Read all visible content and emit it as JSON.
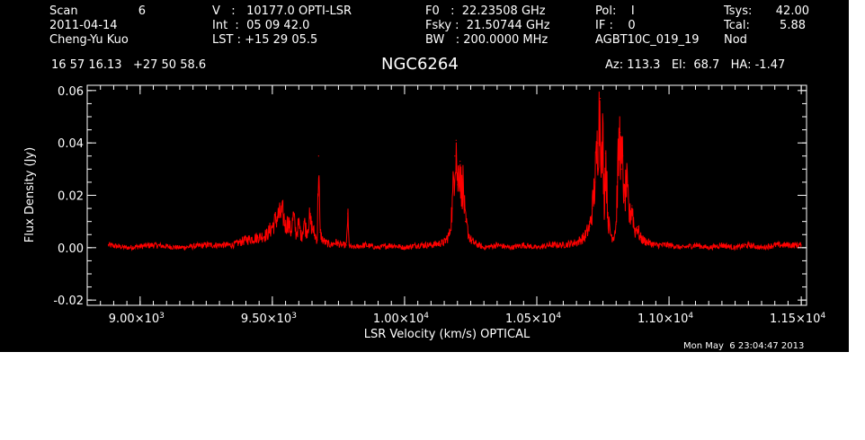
{
  "header": {
    "col1": {
      "scan_label": "Scan",
      "scan_value": "6",
      "date": "2011-04-14",
      "observer": "Cheng-Yu Kuo"
    },
    "col2": {
      "velocity_line": "V   :   10177.0 OPTI-LSR",
      "int_line": "Int  :  05 09 42.0",
      "lst_line": "LST : +15 29 05.5"
    },
    "col3": {
      "f0_line": "F0   :  22.23508 GHz",
      "fsky_line": "Fsky :  21.50744 GHz",
      "bw_line": "BW   : 200.0000 MHz"
    },
    "col4": {
      "pol_line": "Pol:    I",
      "if_line": "IF :    0",
      "project": "AGBT10C_019_19"
    },
    "col5": {
      "tsys_label": "Tsys:",
      "tsys_value": "42.00",
      "tcal_label": "Tcal:",
      "tcal_value": "5.88",
      "mode": "Nod"
    },
    "coords": "16 57 16.13   +27 50 58.6",
    "source": "NGC6264",
    "az_el_ha": "Az: 113.3   El:  68.7   HA: -1.47"
  },
  "footer": {
    "timestamp": "Mon May  6 23:04:47 2013"
  },
  "colors": {
    "background": "#000000",
    "axes": "#ffffff",
    "trace": "#ff0000"
  },
  "chart_data": {
    "type": "line",
    "title": "NGC6264",
    "xlabel": "LSR Velocity (km/s) OPTICAL",
    "ylabel": "Flux Density (Jy)",
    "xlim": [
      8800,
      11520
    ],
    "ylim": [
      -0.022,
      0.062
    ],
    "x_ticks": [
      {
        "value": 9000,
        "mantissa": "9.00",
        "exp": "3"
      },
      {
        "value": 9500,
        "mantissa": "9.50",
        "exp": "3"
      },
      {
        "value": 10000,
        "mantissa": "1.00",
        "exp": "4"
      },
      {
        "value": 10500,
        "mantissa": "1.05",
        "exp": "4"
      },
      {
        "value": 11000,
        "mantissa": "1.10",
        "exp": "4"
      },
      {
        "value": 11500,
        "mantissa": "1.15",
        "exp": "4"
      }
    ],
    "y_ticks": [
      {
        "value": -0.02,
        "label": "-0.02"
      },
      {
        "value": 0.0,
        "label": "0.00"
      },
      {
        "value": 0.02,
        "label": "0.02"
      },
      {
        "value": 0.04,
        "label": "0.04"
      },
      {
        "value": 0.06,
        "label": "0.06"
      }
    ],
    "series": [
      {
        "x": [
          8880,
          8950,
          9050,
          9150,
          9250,
          9350,
          9400,
          9450,
          9480,
          9500,
          9520,
          9540,
          9550,
          9560,
          9570,
          9580,
          9590,
          9600,
          9610,
          9620,
          9630,
          9640,
          9650,
          9660,
          9670,
          9675,
          9680,
          9690,
          9700,
          9720,
          9740,
          9760,
          9780,
          9785,
          9790,
          9800,
          9850,
          9900,
          9950,
          10000,
          10050,
          10100,
          10150,
          10170,
          10180,
          10190,
          10195,
          10200,
          10205,
          10210,
          10215,
          10220,
          10225,
          10230,
          10240,
          10250,
          10260,
          10280,
          10300,
          10350,
          10400,
          10450,
          10500,
          10550,
          10600,
          10650,
          10680,
          10700,
          10710,
          10720,
          10730,
          10740,
          10745,
          10750,
          10755,
          10760,
          10770,
          10780,
          10790,
          10800,
          10805,
          10810,
          10815,
          10820,
          10825,
          10830,
          10840,
          10850,
          10860,
          10870,
          10880,
          10890,
          10900,
          10920,
          10950,
          11000,
          11050,
          11100,
          11150,
          11200,
          11250,
          11300,
          11350,
          11400,
          11450,
          11500
        ],
        "y": [
          0.001,
          0.0,
          0.001,
          0.0,
          0.001,
          0.001,
          0.003,
          0.004,
          0.005,
          0.008,
          0.012,
          0.013,
          0.008,
          0.01,
          0.006,
          0.012,
          0.005,
          0.009,
          0.004,
          0.01,
          0.006,
          0.011,
          0.008,
          0.005,
          0.003,
          0.035,
          0.006,
          0.003,
          0.002,
          0.001,
          0.002,
          0.001,
          0.001,
          0.013,
          0.001,
          0.0,
          0.001,
          0.0,
          0.001,
          0.0,
          0.001,
          0.001,
          0.002,
          0.005,
          0.015,
          0.035,
          0.041,
          0.024,
          0.03,
          0.033,
          0.02,
          0.026,
          0.017,
          0.01,
          0.006,
          0.003,
          0.002,
          0.001,
          0.0,
          0.001,
          0.0,
          0.001,
          0.0,
          0.001,
          0.001,
          0.002,
          0.004,
          0.008,
          0.015,
          0.025,
          0.04,
          0.057,
          0.03,
          0.042,
          0.015,
          0.036,
          0.01,
          0.005,
          0.004,
          0.009,
          0.025,
          0.036,
          0.044,
          0.03,
          0.035,
          0.018,
          0.024,
          0.011,
          0.016,
          0.006,
          0.008,
          0.004,
          0.003,
          0.002,
          0.001,
          0.001,
          0.0,
          0.001,
          0.0,
          0.001,
          0.0,
          0.001,
          0.0,
          0.001,
          0.001,
          0.001
        ]
      }
    ]
  }
}
